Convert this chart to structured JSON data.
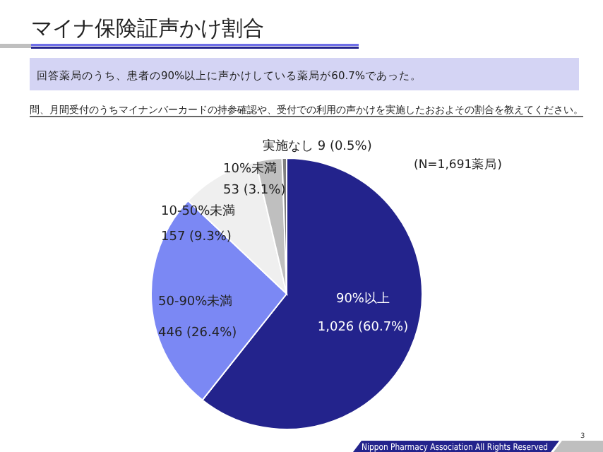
{
  "chart_data": {
    "type": "pie",
    "title": "マイナ保険証声かけ割合",
    "subtitle": "回答薬局のうち、患者の90%以上に声かけしている薬局が60.7%であった。",
    "annotations": [
      "問、月間受付のうちマイナンバーカードの持参確認や、受付での利用の声かけを実施したおおよその割合を教えてください。",
      "(N=1,691薬局)",
      "Nippon Pharmacy Association All Rights Reserved",
      "3"
    ],
    "categories": [
      "90%以上",
      "50-90%未満",
      "10-50%未満",
      "10%未満",
      "実施なし"
    ],
    "values": [
      1026,
      446,
      157,
      53,
      9
    ],
    "value_labels": [
      "1,026 (60.7%)",
      "446 (26.4%)",
      "157 (9.3%)",
      "53 (3.1%)",
      "9 (0.5%)"
    ],
    "colors": [
      "#23238c",
      "#7b88f4",
      "#efefef",
      "#bfbfbf",
      "#7f7f7f"
    ],
    "legend": false
  }
}
